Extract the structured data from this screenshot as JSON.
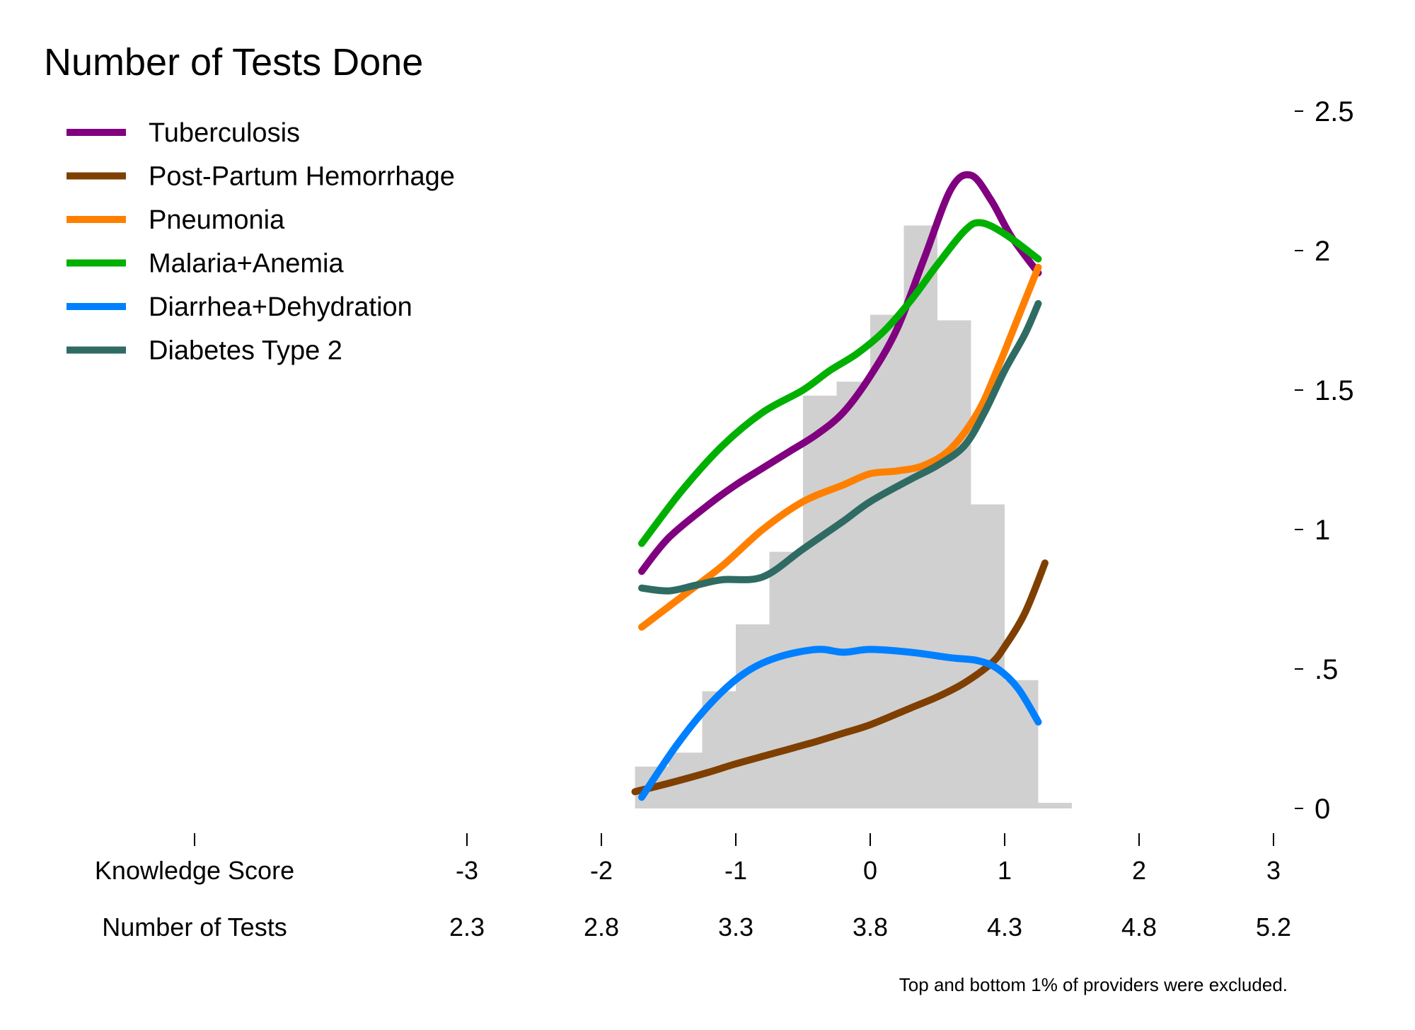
{
  "chart_data": {
    "type": "line",
    "title": "Number of Tests Done",
    "xlabel": "Knowledge Score",
    "x_secondary_label": "Number of Tests",
    "note": "Top and bottom 1% of providers were excluded.",
    "xlim": [
      -3,
      3
    ],
    "ylim": [
      0,
      2.5
    ],
    "x_ticks": [
      -3,
      -2,
      -1,
      0,
      1,
      2,
      3
    ],
    "x_tick_labels": [
      "-3",
      "-2",
      "-1",
      "0",
      "1",
      "2",
      "3"
    ],
    "x_secondary_tick_labels": [
      "2.3",
      "2.8",
      "3.3",
      "3.8",
      "4.3",
      "4.8",
      "5.2"
    ],
    "y_ticks": [
      0,
      0.5,
      1,
      1.5,
      2,
      2.5
    ],
    "y_tick_labels": [
      "0",
      ".5",
      "1",
      "1.5",
      "2",
      "2.5"
    ],
    "y_axis_position": "right",
    "grid": false,
    "legend_position": "top-left",
    "histogram": {
      "color": "#d0d0d0",
      "bins": [
        {
          "x0": -1.75,
          "x1": -1.5,
          "y": 0.15
        },
        {
          "x0": -1.5,
          "x1": -1.25,
          "y": 0.2
        },
        {
          "x0": -1.25,
          "x1": -1.0,
          "y": 0.42
        },
        {
          "x0": -1.0,
          "x1": -0.75,
          "y": 0.66
        },
        {
          "x0": -0.75,
          "x1": -0.5,
          "y": 0.92
        },
        {
          "x0": -0.5,
          "x1": -0.25,
          "y": 1.48
        },
        {
          "x0": -0.25,
          "x1": 0.0,
          "y": 1.53
        },
        {
          "x0": 0.0,
          "x1": 0.25,
          "y": 1.77
        },
        {
          "x0": 0.25,
          "x1": 0.5,
          "y": 2.09
        },
        {
          "x0": 0.5,
          "x1": 0.75,
          "y": 1.75
        },
        {
          "x0": 0.75,
          "x1": 1.0,
          "y": 1.09
        },
        {
          "x0": 1.0,
          "x1": 1.25,
          "y": 0.46
        },
        {
          "x0": 1.25,
          "x1": 1.5,
          "y": 0.02
        }
      ]
    },
    "series": [
      {
        "name": "Tuberculosis",
        "color": "#800080",
        "points": [
          [
            -1.7,
            0.85
          ],
          [
            -1.5,
            0.97
          ],
          [
            -1.2,
            1.09
          ],
          [
            -1.0,
            1.16
          ],
          [
            -0.8,
            1.22
          ],
          [
            -0.6,
            1.28
          ],
          [
            -0.4,
            1.34
          ],
          [
            -0.2,
            1.42
          ],
          [
            0.0,
            1.55
          ],
          [
            0.2,
            1.72
          ],
          [
            0.4,
            1.97
          ],
          [
            0.6,
            2.22
          ],
          [
            0.75,
            2.27
          ],
          [
            0.9,
            2.18
          ],
          [
            1.05,
            2.05
          ],
          [
            1.25,
            1.92
          ]
        ]
      },
      {
        "name": "Post-Partum Hemorrhage",
        "color": "#7f3f00",
        "points": [
          [
            -1.75,
            0.06
          ],
          [
            -1.5,
            0.09
          ],
          [
            -1.2,
            0.13
          ],
          [
            -1.0,
            0.16
          ],
          [
            -0.7,
            0.2
          ],
          [
            -0.4,
            0.24
          ],
          [
            -0.2,
            0.27
          ],
          [
            0.0,
            0.3
          ],
          [
            0.3,
            0.36
          ],
          [
            0.5,
            0.4
          ],
          [
            0.7,
            0.45
          ],
          [
            0.9,
            0.52
          ],
          [
            1.0,
            0.58
          ],
          [
            1.15,
            0.7
          ],
          [
            1.3,
            0.88
          ]
        ]
      },
      {
        "name": "Pneumonia",
        "color": "#ff8000",
        "points": [
          [
            -1.7,
            0.65
          ],
          [
            -1.4,
            0.76
          ],
          [
            -1.1,
            0.87
          ],
          [
            -0.8,
            1.0
          ],
          [
            -0.5,
            1.1
          ],
          [
            -0.2,
            1.16
          ],
          [
            0.0,
            1.2
          ],
          [
            0.2,
            1.21
          ],
          [
            0.4,
            1.23
          ],
          [
            0.6,
            1.29
          ],
          [
            0.8,
            1.42
          ],
          [
            0.95,
            1.58
          ],
          [
            1.1,
            1.76
          ],
          [
            1.25,
            1.94
          ]
        ]
      },
      {
        "name": "Malaria+Anemia",
        "color": "#00b000",
        "points": [
          [
            -1.7,
            0.95
          ],
          [
            -1.4,
            1.14
          ],
          [
            -1.1,
            1.3
          ],
          [
            -0.8,
            1.42
          ],
          [
            -0.5,
            1.5
          ],
          [
            -0.3,
            1.57
          ],
          [
            -0.1,
            1.63
          ],
          [
            0.1,
            1.71
          ],
          [
            0.3,
            1.82
          ],
          [
            0.5,
            1.95
          ],
          [
            0.7,
            2.07
          ],
          [
            0.82,
            2.1
          ],
          [
            1.0,
            2.06
          ],
          [
            1.25,
            1.97
          ]
        ]
      },
      {
        "name": "Diarrhea+Dehydration",
        "color": "#0080ff",
        "points": [
          [
            -1.7,
            0.04
          ],
          [
            -1.45,
            0.22
          ],
          [
            -1.2,
            0.37
          ],
          [
            -0.95,
            0.48
          ],
          [
            -0.7,
            0.54
          ],
          [
            -0.4,
            0.57
          ],
          [
            -0.2,
            0.56
          ],
          [
            0.0,
            0.57
          ],
          [
            0.3,
            0.56
          ],
          [
            0.6,
            0.54
          ],
          [
            0.8,
            0.53
          ],
          [
            0.95,
            0.5
          ],
          [
            1.1,
            0.43
          ],
          [
            1.25,
            0.31
          ]
        ]
      },
      {
        "name": "Diabetes Type 2",
        "color": "#2f6b63",
        "points": [
          [
            -1.7,
            0.79
          ],
          [
            -1.5,
            0.78
          ],
          [
            -1.3,
            0.8
          ],
          [
            -1.1,
            0.82
          ],
          [
            -0.8,
            0.83
          ],
          [
            -0.5,
            0.93
          ],
          [
            -0.2,
            1.03
          ],
          [
            0.0,
            1.1
          ],
          [
            0.3,
            1.18
          ],
          [
            0.5,
            1.23
          ],
          [
            0.7,
            1.3
          ],
          [
            0.85,
            1.42
          ],
          [
            1.0,
            1.57
          ],
          [
            1.15,
            1.7
          ],
          [
            1.25,
            1.81
          ]
        ]
      }
    ]
  }
}
